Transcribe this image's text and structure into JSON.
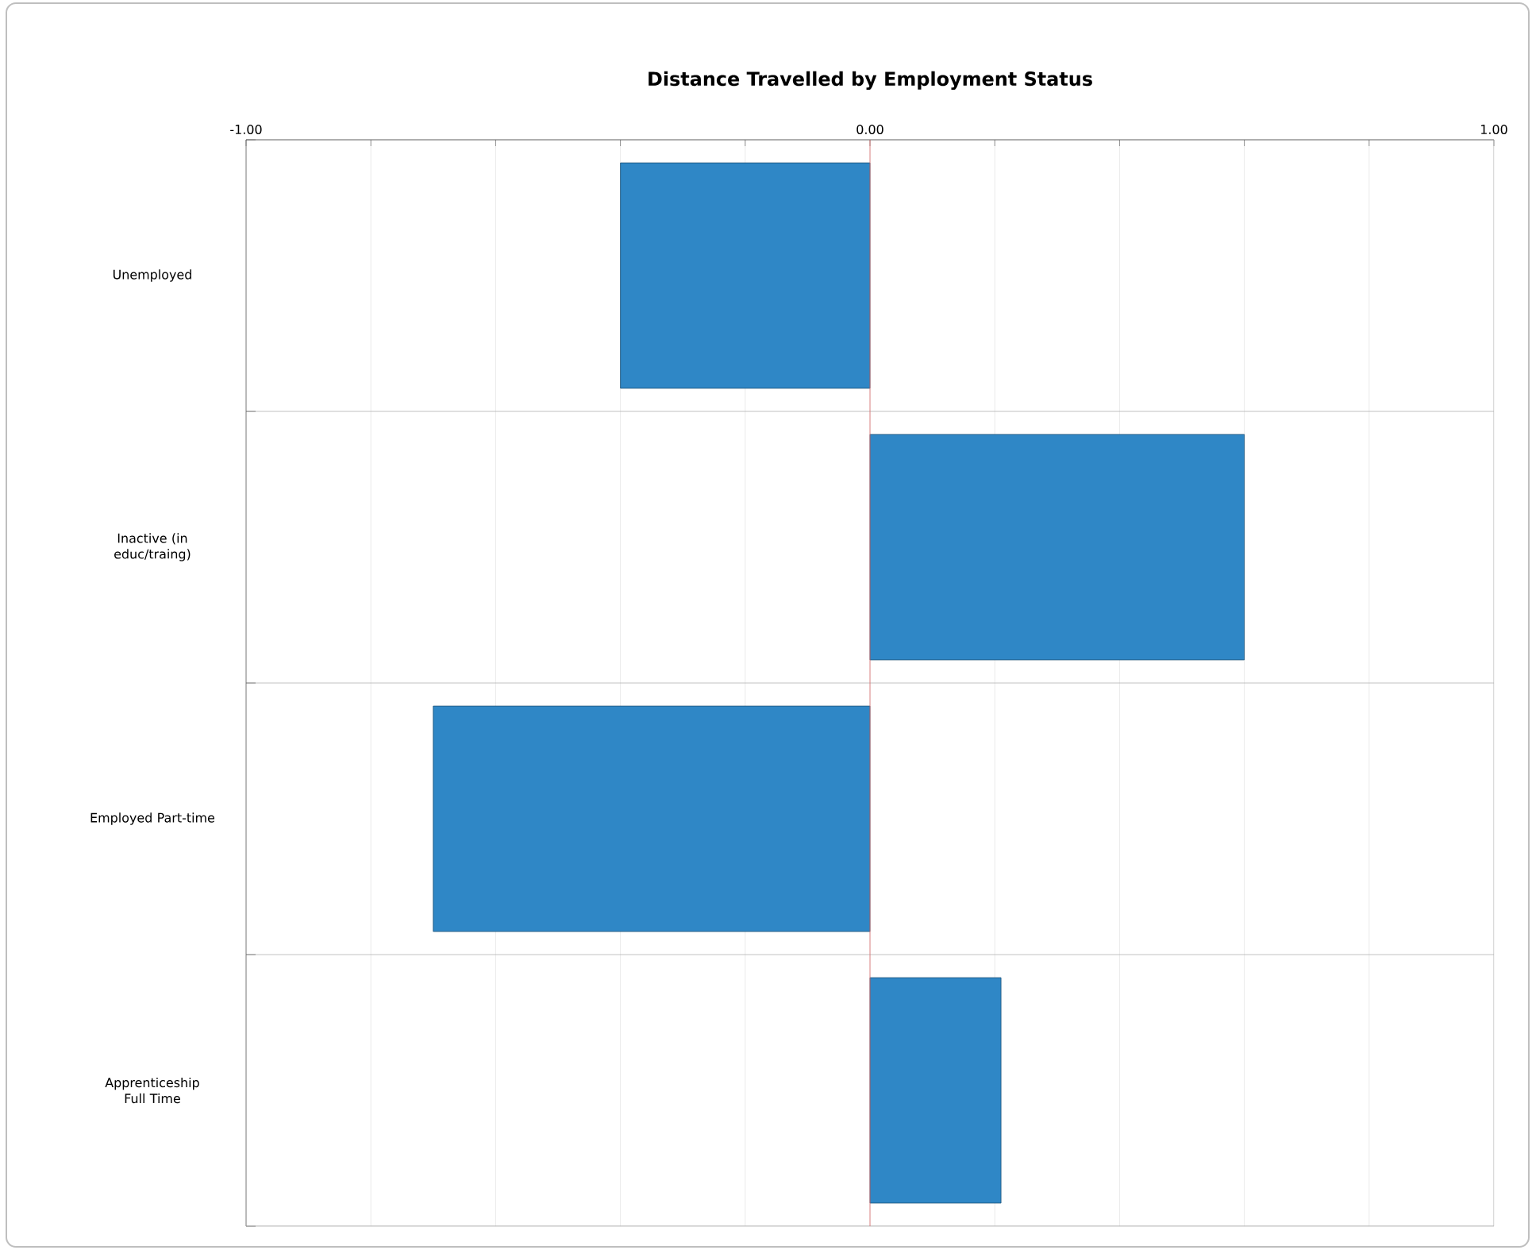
{
  "chart_data": {
    "type": "bar",
    "orientation": "horizontal",
    "title": "Distance Travelled by Employment Status",
    "categories": [
      "Unemployed",
      "Inactive (in educ/traing)",
      "Employed Part-time",
      "Apprenticeship Full Time"
    ],
    "values": [
      -0.4,
      0.6,
      -0.7,
      0.21
    ],
    "color": "#2f87c6",
    "xlim": [
      -1,
      1
    ],
    "xticks": [
      {
        "value": -1,
        "label": "-1.00"
      },
      {
        "value": -0.8,
        "label": null
      },
      {
        "value": -0.6,
        "label": null
      },
      {
        "value": -0.4,
        "label": null
      },
      {
        "value": -0.2,
        "label": null
      },
      {
        "value": 0,
        "label": "0.00"
      },
      {
        "value": 0.2,
        "label": null
      },
      {
        "value": 0.4,
        "label": null
      },
      {
        "value": 0.6,
        "label": null
      },
      {
        "value": 0.8,
        "label": null
      },
      {
        "value": 1,
        "label": "1.00"
      }
    ],
    "ref_lines": [
      {
        "axis": "x",
        "value": 0,
        "color": "#e07070"
      }
    ],
    "grid": true
  }
}
